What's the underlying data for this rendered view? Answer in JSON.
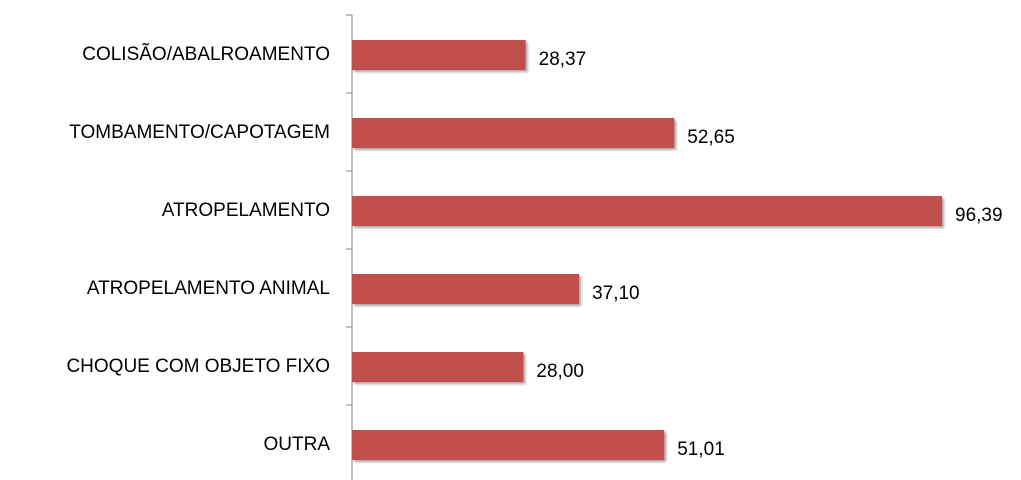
{
  "chart_data": {
    "type": "bar",
    "orientation": "horizontal",
    "categories": [
      "COLISÃO/ABALROAMENTO",
      "TOMBAMENTO/CAPOTAGEM",
      "ATROPELAMENTO",
      "ATROPELAMENTO ANIMAL",
      "CHOQUE COM OBJETO FIXO",
      "OUTRA"
    ],
    "values": [
      28.37,
      52.65,
      96.39,
      37.1,
      28.0,
      51.01
    ],
    "value_labels": [
      "28,37",
      "52,65",
      "96,39",
      "37,10",
      "28,00",
      "51,01"
    ],
    "color": "#c0504d"
  }
}
